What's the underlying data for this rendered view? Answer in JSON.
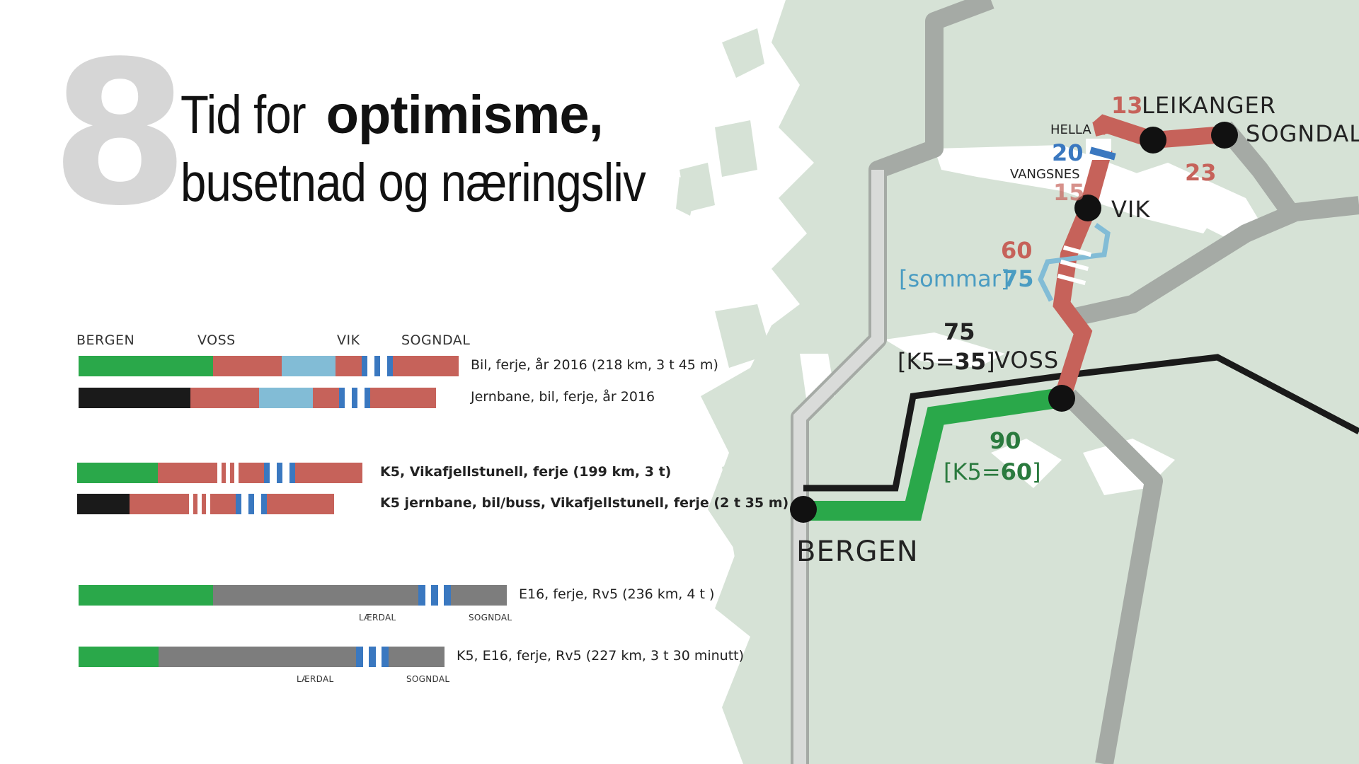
{
  "page_number": "8",
  "title": {
    "line1_light": "Tid for ",
    "line1_bold": "optimisme,",
    "line2": "busetnad og næringsliv"
  },
  "stations": [
    "BERGEN",
    "VOSS",
    "VIK",
    "SOGNDAL"
  ],
  "routes": [
    {
      "label": "Bil, ferje, år 2016  (218 km, 3 t 45 m)"
    },
    {
      "label": "Jernbane, bil, ferje, år 2016"
    },
    {
      "label": "K5, Vikafjellstunell, ferje (199 km, 3 t)"
    },
    {
      "label": "K5 jernbane, bil/buss, Vikafjellstunell, ferje (2 t 35 m)"
    },
    {
      "label": "E16, ferje, Rv5  (236 km, 4 t )",
      "tag1": "LÆRDAL",
      "tag2": "SOGNDAL"
    },
    {
      "label": "K5, E16, ferje, Rv5  (227 km, 3 t 30 minutt)",
      "tag1": "LÆRDAL",
      "tag2": "SOGNDAL"
    }
  ],
  "map": {
    "bergen": "BERGEN",
    "voss": "VOSS",
    "vik": "VIK",
    "leikanger": "LEIKANGER",
    "sogndal": "SOGNDAL",
    "hella": "HELLA",
    "vangsnes": "VANGSNES",
    "val_13": "13",
    "val_23": "23",
    "val_20": "20",
    "val_15": "15",
    "val_60": "60",
    "val_sommar": "[sommar]",
    "val_75s": "75",
    "val_75": "75",
    "val_k5_35_open": "[K5=",
    "val_k5_35_num": "35",
    "val_k5_35_close": "]",
    "val_90": "90",
    "val_k5_60_open": "[K5=",
    "val_k5_60_num": "60",
    "val_k5_60_close": "]"
  },
  "colors": {
    "green": "#2aa84a",
    "red": "#c6625a",
    "lightblue": "#82bcd6",
    "blue": "#3a78c0",
    "black": "#1a1a1a",
    "gray": "#7d7d7d",
    "land": "#d6e2d6",
    "road": "#a5aaa5"
  }
}
